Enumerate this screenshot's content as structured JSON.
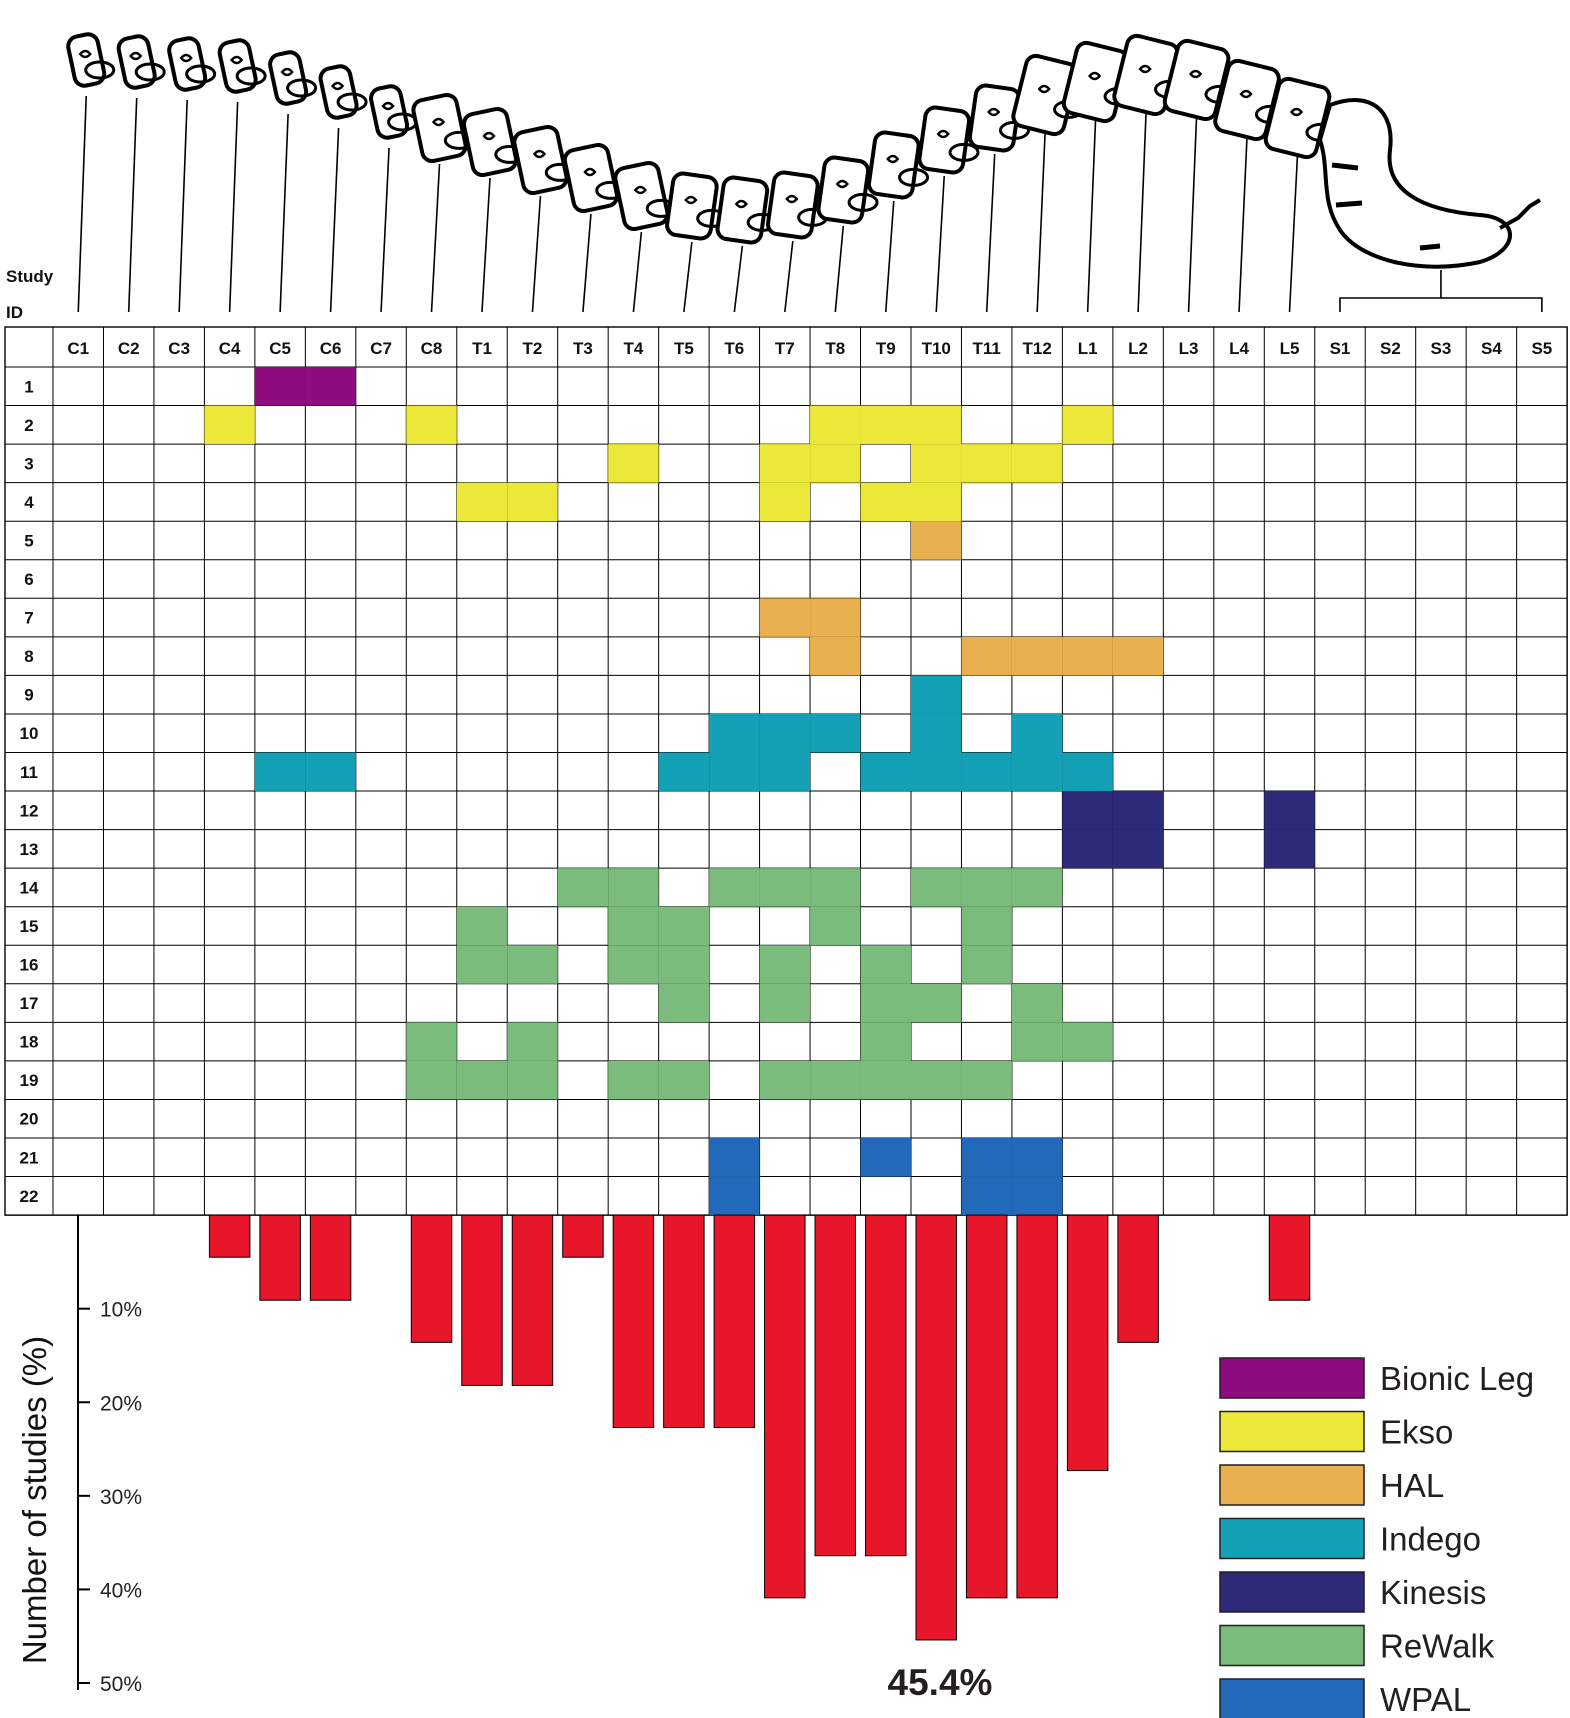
{
  "figure": {
    "study_label_line1": "Study",
    "study_label_line2": "ID",
    "ylabel": "Number of studies (%)",
    "peak_annotation": "45.4%"
  },
  "colors": {
    "Bionic Leg": "#8e0c7f",
    "Ekso": "#ece83a",
    "HAL": "#e8b04f",
    "Indego": "#14a0b5",
    "Kinesis": "#2e2a7a",
    "ReWalk": "#7bbb7b",
    "WPAL": "#2369b9",
    "bar": "#e8162a"
  },
  "chart_data": [
    {
      "type": "heatmap",
      "columns": [
        "C1",
        "C2",
        "C3",
        "C4",
        "C5",
        "C6",
        "C7",
        "C8",
        "T1",
        "T2",
        "T3",
        "T4",
        "T5",
        "T6",
        "T7",
        "T8",
        "T9",
        "T10",
        "T11",
        "T12",
        "L1",
        "L2",
        "L3",
        "L4",
        "L5",
        "S1",
        "S2",
        "S3",
        "S4",
        "S5"
      ],
      "rows": [
        "1",
        "2",
        "3",
        "4",
        "5",
        "6",
        "7",
        "8",
        "9",
        "10",
        "11",
        "12",
        "13",
        "14",
        "15",
        "16",
        "17",
        "18",
        "19",
        "20",
        "21",
        "22"
      ],
      "row_axis_label": "Study ID",
      "cells": [
        {
          "row": "1",
          "device": "Bionic Leg",
          "levels": [
            "C5",
            "C6"
          ]
        },
        {
          "row": "2",
          "device": "Ekso",
          "levels": [
            "C4",
            "C8",
            "T8",
            "T9",
            "T10",
            "L1"
          ]
        },
        {
          "row": "3",
          "device": "Ekso",
          "levels": [
            "T4",
            "T7",
            "T8",
            "T10",
            "T11",
            "T12"
          ]
        },
        {
          "row": "4",
          "device": "Ekso",
          "levels": [
            "T1",
            "T2",
            "T7",
            "T9",
            "T10"
          ]
        },
        {
          "row": "5",
          "device": "HAL",
          "levels": [
            "T10"
          ]
        },
        {
          "row": "6",
          "device": "",
          "levels": []
        },
        {
          "row": "7",
          "device": "HAL",
          "levels": [
            "T7",
            "T8"
          ]
        },
        {
          "row": "8",
          "device": "HAL",
          "levels": [
            "T8",
            "T11",
            "T12",
            "L1",
            "L2"
          ]
        },
        {
          "row": "9",
          "device": "Indego",
          "levels": [
            "T10"
          ]
        },
        {
          "row": "10",
          "device": "Indego",
          "levels": [
            "T6",
            "T7",
            "T8",
            "T10",
            "T12"
          ]
        },
        {
          "row": "11",
          "device": "Indego",
          "levels": [
            "C5",
            "C6",
            "T5",
            "T6",
            "T7",
            "T9",
            "T10",
            "T11",
            "T12",
            "L1"
          ]
        },
        {
          "row": "12",
          "device": "Kinesis",
          "levels": [
            "L1",
            "L2",
            "L5"
          ]
        },
        {
          "row": "13",
          "device": "Kinesis",
          "levels": [
            "L1",
            "L2",
            "L5"
          ]
        },
        {
          "row": "14",
          "device": "ReWalk",
          "levels": [
            "T3",
            "T4",
            "T6",
            "T7",
            "T8",
            "T10",
            "T11",
            "T12"
          ]
        },
        {
          "row": "15",
          "device": "ReWalk",
          "levels": [
            "T1",
            "T4",
            "T5",
            "T8",
            "T11"
          ]
        },
        {
          "row": "16",
          "device": "ReWalk",
          "levels": [
            "T1",
            "T2",
            "T4",
            "T5",
            "T7",
            "T9",
            "T11"
          ]
        },
        {
          "row": "17",
          "device": "ReWalk",
          "levels": [
            "T5",
            "T7",
            "T9",
            "T10",
            "T12"
          ]
        },
        {
          "row": "18",
          "device": "ReWalk",
          "levels": [
            "C8",
            "T2",
            "T9",
            "T12",
            "L1"
          ]
        },
        {
          "row": "19",
          "device": "ReWalk",
          "levels": [
            "C8",
            "T1",
            "T2",
            "T4",
            "T5",
            "T7",
            "T8",
            "T9",
            "T10",
            "T11"
          ]
        },
        {
          "row": "20",
          "device": "",
          "levels": []
        },
        {
          "row": "21",
          "device": "WPAL",
          "levels": [
            "T6",
            "T9",
            "T11",
            "T12"
          ]
        },
        {
          "row": "22",
          "device": "WPAL",
          "levels": [
            "T6",
            "T11",
            "T12"
          ]
        }
      ],
      "legend": [
        "Bionic Leg",
        "Ekso",
        "HAL",
        "Indego",
        "Kinesis",
        "ReWalk",
        "WPAL"
      ],
      "legend_position": "bottom-right"
    },
    {
      "type": "bar",
      "orientation": "downward",
      "categories": [
        "C1",
        "C2",
        "C3",
        "C4",
        "C5",
        "C6",
        "C7",
        "C8",
        "T1",
        "T2",
        "T3",
        "T4",
        "T5",
        "T6",
        "T7",
        "T8",
        "T9",
        "T10",
        "T11",
        "T12",
        "L1",
        "L2",
        "L3",
        "L4",
        "L5",
        "S1",
        "S2",
        "S3",
        "S4",
        "S5"
      ],
      "values": [
        0,
        0,
        0,
        4.5,
        9.1,
        9.1,
        0,
        13.6,
        18.2,
        18.2,
        4.5,
        22.7,
        22.7,
        22.7,
        40.9,
        36.4,
        36.4,
        45.4,
        40.9,
        40.9,
        27.3,
        13.6,
        0,
        0,
        9.1,
        0,
        0,
        0,
        0,
        0
      ],
      "ylabel": "Number of studies (%)",
      "yticks": [
        "10%",
        "20%",
        "30%",
        "40%",
        "50%"
      ],
      "ylim": [
        0,
        50
      ],
      "annotation": "45.4%"
    }
  ]
}
